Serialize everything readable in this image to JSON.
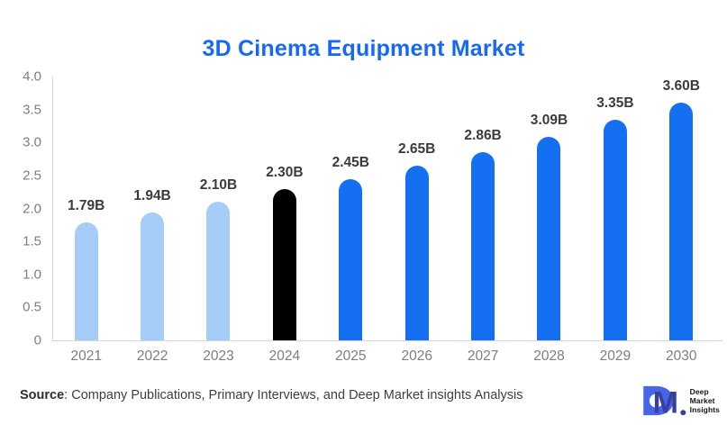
{
  "chart_data": {
    "type": "bar",
    "title": "3D Cinema Equipment Market",
    "categories": [
      "2021",
      "2022",
      "2023",
      "2024",
      "2025",
      "2026",
      "2027",
      "2028",
      "2029",
      "2030"
    ],
    "values": [
      1.79,
      1.94,
      2.1,
      2.3,
      2.45,
      2.65,
      2.86,
      3.09,
      3.35,
      3.6
    ],
    "value_labels": [
      "1.79B",
      "1.94B",
      "2.10B",
      "2.30B",
      "2.45B",
      "2.65B",
      "2.86B",
      "3.09B",
      "3.35B",
      "3.60B"
    ],
    "bar_colors": [
      "#A6CDF8",
      "#A6CDF8",
      "#A6CDF8",
      "#000000",
      "#1470F1",
      "#1470F1",
      "#1470F1",
      "#1470F1",
      "#1470F1",
      "#1470F1"
    ],
    "xlabel": "",
    "ylabel": "",
    "ylim": [
      0,
      4.0
    ],
    "yticks": [
      "4.0",
      "3.5",
      "3.0",
      "2.5",
      "2.0",
      "1.5",
      "1.0",
      "0.5",
      "0"
    ],
    "grid": false,
    "legend": "none"
  },
  "colors": {
    "title": "#1668F5",
    "bar_light_blue": "#A6CDF8",
    "bar_highlight_black": "#000000",
    "bar_blue": "#1470F1",
    "axis_line": "#D6D6D6",
    "tick_text": "#7D7D7D",
    "value_text": "#3B3B3B",
    "logo_blue": "#4565EC",
    "logo_indigo": "#3A3F9E"
  },
  "footer": {
    "source_label": "Source",
    "source_rest": ": Company Publications, Primary Interviews, and Deep Market insights Analysis"
  },
  "logo": {
    "d_letter": "D",
    "m_letter": "M",
    "lines": [
      "Deep",
      "Market",
      "Insights"
    ]
  }
}
